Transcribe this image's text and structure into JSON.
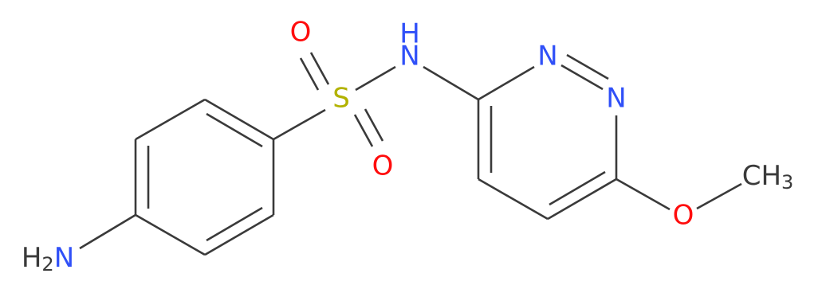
{
  "atoms": {
    "amine": {
      "h": "H",
      "sub": "2",
      "n": "N"
    },
    "sulfur": "S",
    "oxygen_top": "O",
    "oxygen_bottom": "O",
    "amide": {
      "n": "N",
      "h": "H"
    },
    "ring_n1": "N",
    "ring_n2": "N",
    "ether_oxygen": "O",
    "methyl": {
      "c": "CH",
      "sub": "3"
    }
  }
}
